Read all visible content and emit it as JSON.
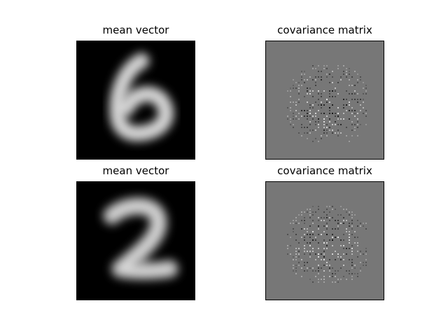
{
  "panels": [
    {
      "title": "mean vector",
      "kind": "mean",
      "digit": "6"
    },
    {
      "title": "covariance matrix",
      "kind": "cov"
    },
    {
      "title": "mean vector",
      "kind": "mean",
      "digit": "2"
    },
    {
      "title": "covariance matrix",
      "kind": "cov"
    }
  ],
  "colors": {
    "background": "#ffffff",
    "cov_gray": "#777777",
    "mean_bg": "#000000"
  }
}
